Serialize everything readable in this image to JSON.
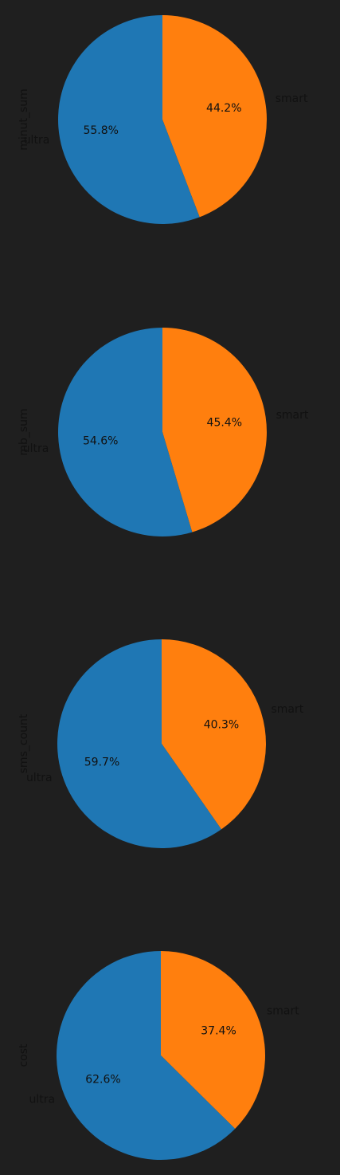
{
  "colors": {
    "background": "#1f1f1f",
    "ultra": "#1f77b4",
    "smart": "#ff7f0e",
    "text": "#111111"
  },
  "chart_data": [
    {
      "type": "pie",
      "ylabel": "minut_sum",
      "labels": [
        "smart",
        "ultra"
      ],
      "values": [
        44.2,
        55.8
      ],
      "pct_labels": [
        "44.2%",
        "55.8%"
      ]
    },
    {
      "type": "pie",
      "ylabel": "mb_sum",
      "labels": [
        "smart",
        "ultra"
      ],
      "values": [
        45.4,
        54.6
      ],
      "pct_labels": [
        "45.4%",
        "54.6%"
      ]
    },
    {
      "type": "pie",
      "ylabel": "sms_count",
      "labels": [
        "smart",
        "ultra"
      ],
      "values": [
        40.3,
        59.7
      ],
      "pct_labels": [
        "40.3%",
        "59.7%"
      ]
    },
    {
      "type": "pie",
      "ylabel": "cost",
      "labels": [
        "smart",
        "ultra"
      ],
      "values": [
        37.4,
        62.6
      ],
      "pct_labels": [
        "37.4%",
        "62.6%"
      ]
    }
  ]
}
